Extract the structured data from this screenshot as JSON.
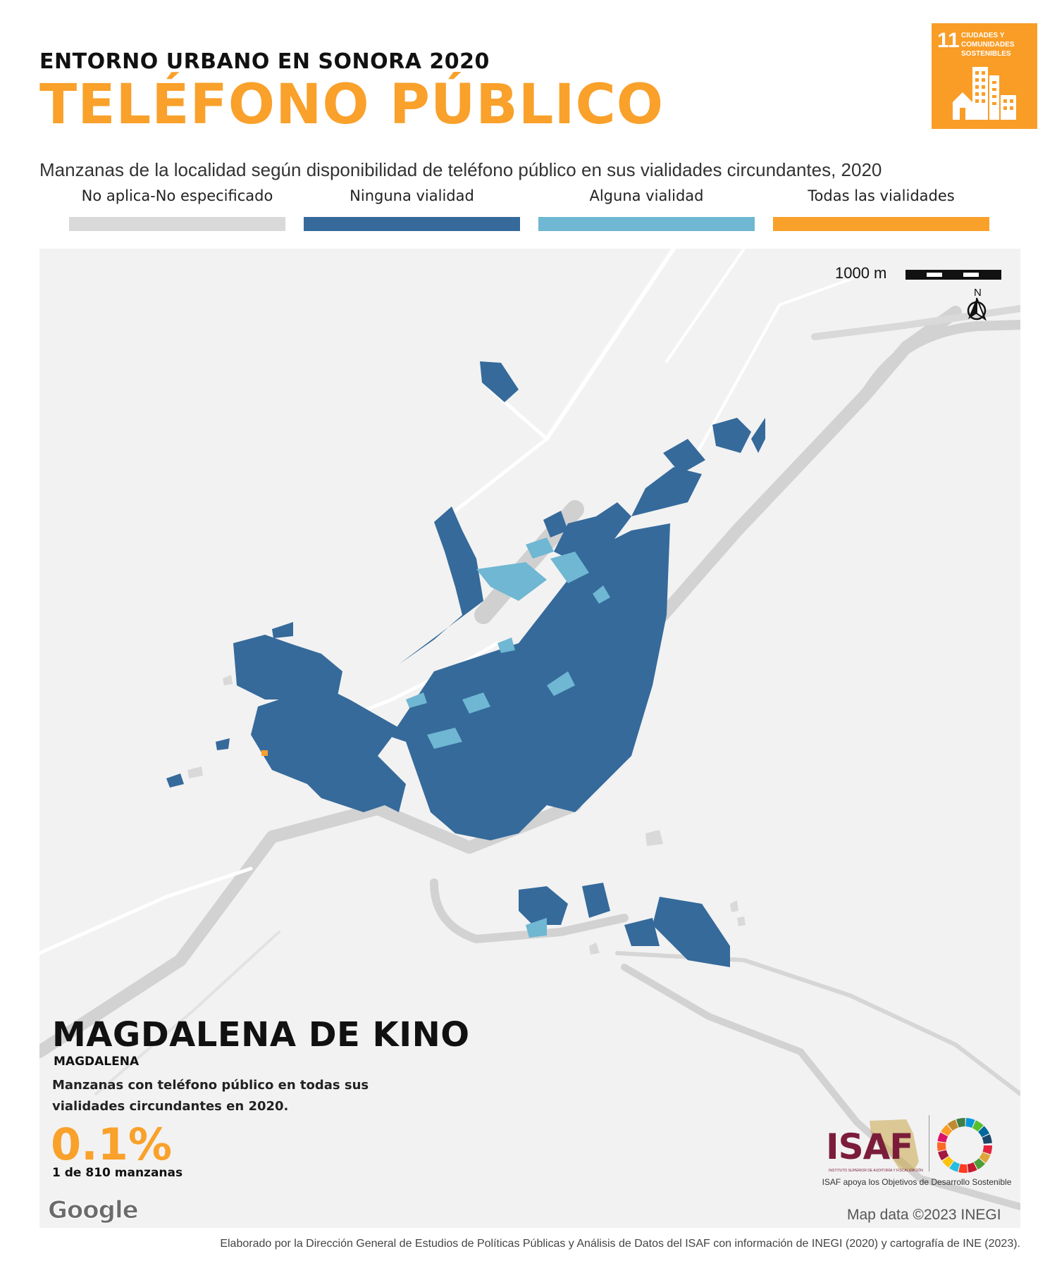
{
  "header": {
    "pretitle": "ENTORNO URBANO EN SONORA 2020",
    "title": "TELÉFONO PÚBLICO",
    "subtitle": "Manzanas de la localidad según disponibilidad de teléfono público en sus vialidades circundantes, 2020"
  },
  "sdg_badge": {
    "number": "11",
    "label": "CIUDADES Y COMUNIDADES SOSTENIBLES",
    "color": "#f99d26"
  },
  "legend": [
    {
      "label": "No aplica-No especificado",
      "color": "#d9d9d9"
    },
    {
      "label": "Ninguna vialidad",
      "color": "#356a9b"
    },
    {
      "label": "Alguna vialidad",
      "color": "#6fb7d2"
    },
    {
      "label": "Todas las vialidades",
      "color": "#f9a12b"
    }
  ],
  "map": {
    "scale_label": "1000 m",
    "north_label": "N",
    "attribution": "Map data ©2023 INEGI",
    "provider_logo": "Google"
  },
  "summary": {
    "place": "MAGDALENA DE KINO",
    "municipality": "MAGDALENA",
    "description": "Manzanas con teléfono público en todas sus vialidades circundantes en 2020.",
    "value": "0.1%",
    "count": "1 de 810 manzanas"
  },
  "logos": {
    "isaf": "ISAF",
    "isaf_small": "INSTITUTO SUPERIOR DE AUDITORÍA Y FISCALIZACIÓN",
    "tagline": "ISAF apoya los Objetivos de Desarrollo Sostenible"
  },
  "footer": {
    "credit": "Elaborado por la Dirección General de Estudios de Políticas Públicas y Análisis de Datos del ISAF con información de INEGI (2020) y cartografía de INE (2023)."
  }
}
